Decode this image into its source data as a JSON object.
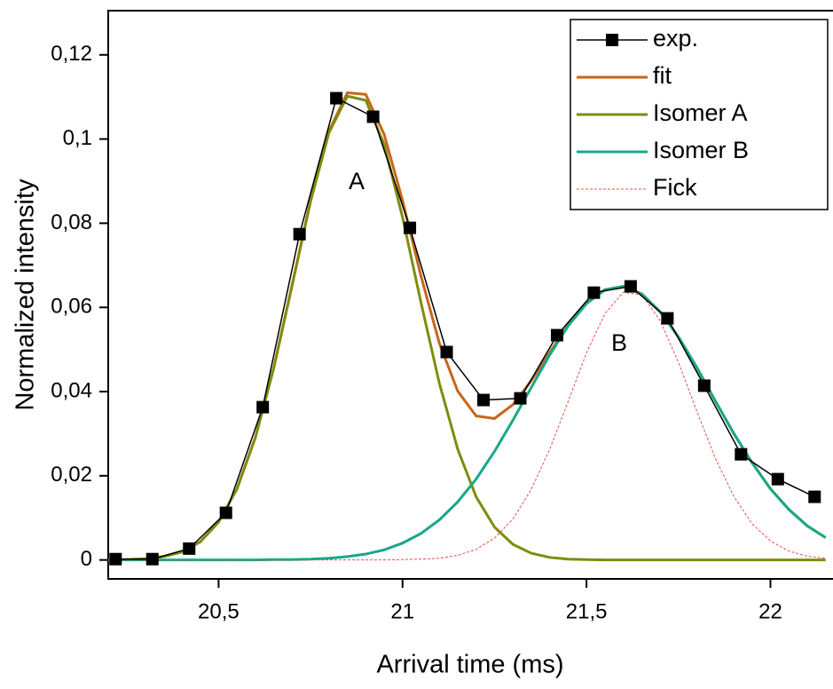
{
  "chart_data": {
    "type": "line",
    "xlabel": "Arrival time (ms)",
    "ylabel": "Normalized intensity",
    "xlim": [
      20.2,
      22.17
    ],
    "ylim": [
      -0.0045,
      0.1305
    ],
    "xticks": [
      {
        "value": 20.5,
        "label": "20,5"
      },
      21,
      {
        "value": 21.5,
        "label": "21,5"
      },
      22
    ],
    "yticks": [
      0,
      {
        "value": 0.02,
        "label": "0,02"
      },
      {
        "value": 0.04,
        "label": "0,04"
      },
      {
        "value": 0.06,
        "label": "0,06"
      },
      {
        "value": 0.08,
        "label": "0,08"
      },
      {
        "value": 0.1,
        "label": "0,1"
      },
      {
        "value": 0.12,
        "label": "0,12"
      }
    ],
    "legend": "upper right",
    "annotations": [
      "A",
      "B"
    ],
    "x": [
      20.2,
      20.25,
      20.3,
      20.35,
      20.4,
      20.45,
      20.5,
      20.55,
      20.6,
      20.65,
      20.7,
      20.75,
      20.8,
      20.85,
      20.9,
      20.95,
      21.0,
      21.05,
      21.1,
      21.15,
      21.2,
      21.25,
      21.3,
      21.35,
      21.4,
      21.45,
      21.5,
      21.55,
      21.6,
      21.65,
      21.7,
      21.75,
      21.8,
      21.85,
      21.9,
      21.95,
      22.0,
      22.05,
      22.1,
      22.15
    ],
    "series": [
      {
        "name": "exp.",
        "color": "#000000",
        "marker": "square",
        "x": [
          20.22,
          20.32,
          20.42,
          20.52,
          20.62,
          20.72,
          20.82,
          20.92,
          21.02,
          21.12,
          21.22,
          21.32,
          21.42,
          21.52,
          21.62,
          21.72,
          21.82,
          21.92,
          22.02,
          22.12
        ],
        "values": [
          0.0002,
          0.0002,
          0.0027,
          0.0112,
          0.0363,
          0.0774,
          0.1097,
          0.1053,
          0.0789,
          0.0494,
          0.038,
          0.0384,
          0.0534,
          0.0635,
          0.065,
          0.0574,
          0.0414,
          0.0251,
          0.0192,
          0.015
        ]
      },
      {
        "name": "fit",
        "color": "#c8661a",
        "values": [
          0.0,
          0.0001,
          0.0003,
          0.0008,
          0.0019,
          0.0043,
          0.009,
          0.0169,
          0.0291,
          0.0457,
          0.0654,
          0.0854,
          0.1019,
          0.111,
          0.1106,
          0.1011,
          0.0854,
          0.0675,
          0.0515,
          0.0401,
          0.0342,
          0.0336,
          0.0369,
          0.0426,
          0.0493,
          0.0558,
          0.061,
          0.0642,
          0.065,
          0.0632,
          0.059,
          0.053,
          0.0457,
          0.0378,
          0.0301,
          0.0231,
          0.0169,
          0.012,
          0.0081,
          0.0053
        ]
      },
      {
        "name": "Isomer A",
        "color": "#7f8c0c",
        "values": [
          0.0,
          0.0001,
          0.0003,
          0.0008,
          0.0019,
          0.0043,
          0.009,
          0.0169,
          0.0291,
          0.0456,
          0.0653,
          0.0852,
          0.1015,
          0.1102,
          0.1092,
          0.0987,
          0.0814,
          0.0612,
          0.042,
          0.0263,
          0.015,
          0.0078,
          0.0037,
          0.0016,
          0.0006,
          0.0002,
          0.0001,
          0.0,
          0.0,
          0.0,
          0.0,
          0.0,
          0.0,
          0.0,
          0.0,
          0.0,
          0.0,
          0.0,
          0.0,
          0.0
        ]
      },
      {
        "name": "Isomer B",
        "color": "#17a88a",
        "values": [
          0.0,
          0.0,
          0.0,
          0.0,
          0.0,
          0.0,
          0.0,
          0.0,
          0.0,
          0.0001,
          0.0001,
          0.0002,
          0.0004,
          0.0008,
          0.0014,
          0.0024,
          0.004,
          0.0063,
          0.0095,
          0.0138,
          0.0192,
          0.0258,
          0.0332,
          0.041,
          0.0487,
          0.0556,
          0.0609,
          0.0642,
          0.065,
          0.0632,
          0.059,
          0.053,
          0.0457,
          0.0378,
          0.0301,
          0.0231,
          0.0169,
          0.012,
          0.0081,
          0.0053
        ]
      },
      {
        "name": "Fick",
        "color": "#e8504a",
        "dashed": true,
        "values": [
          0.0,
          0.0,
          0.0,
          0.0,
          0.0,
          0.0,
          0.0,
          0.0,
          0.0,
          0.0,
          0.0,
          0.0,
          0.0,
          0.0,
          0.0,
          0.0,
          0.0001,
          0.0002,
          0.0004,
          0.0011,
          0.0025,
          0.0052,
          0.0097,
          0.0168,
          0.0263,
          0.0376,
          0.0492,
          0.0585,
          0.0636,
          0.063,
          0.0569,
          0.0469,
          0.0353,
          0.0242,
          0.0152,
          0.0086,
          0.0045,
          0.0021,
          0.0009,
          0.0004
        ]
      }
    ]
  }
}
